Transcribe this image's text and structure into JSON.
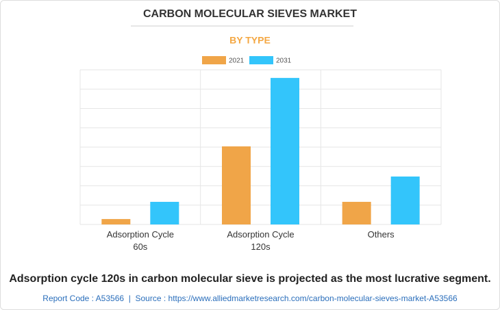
{
  "chart_data": {
    "type": "bar",
    "title": "CARBON MOLECULAR SIEVES MARKET",
    "subtitle": "BY TYPE",
    "categories": [
      "Adsorption Cycle 60s",
      "Adsorption Cycle 120s",
      "Others"
    ],
    "series": [
      {
        "name": "2021",
        "color": "#f0a548",
        "values": [
          0.28,
          4.04,
          1.17
        ]
      },
      {
        "name": "2031",
        "color": "#33c5fb",
        "values": [
          1.17,
          7.58,
          2.48
        ]
      }
    ],
    "ylim": [
      0,
      8
    ],
    "yticks": [
      0,
      1,
      2,
      3,
      4,
      5,
      6,
      7,
      8
    ],
    "grid": true,
    "footer": "Adsorption cycle 120s in carbon molecular sieve is projected as the most lucrative segment.",
    "source": "Report Code : A53566  |  Source : https://www.alliedmarketresearch.com/carbon-molecular-sieves-market-A53566"
  }
}
